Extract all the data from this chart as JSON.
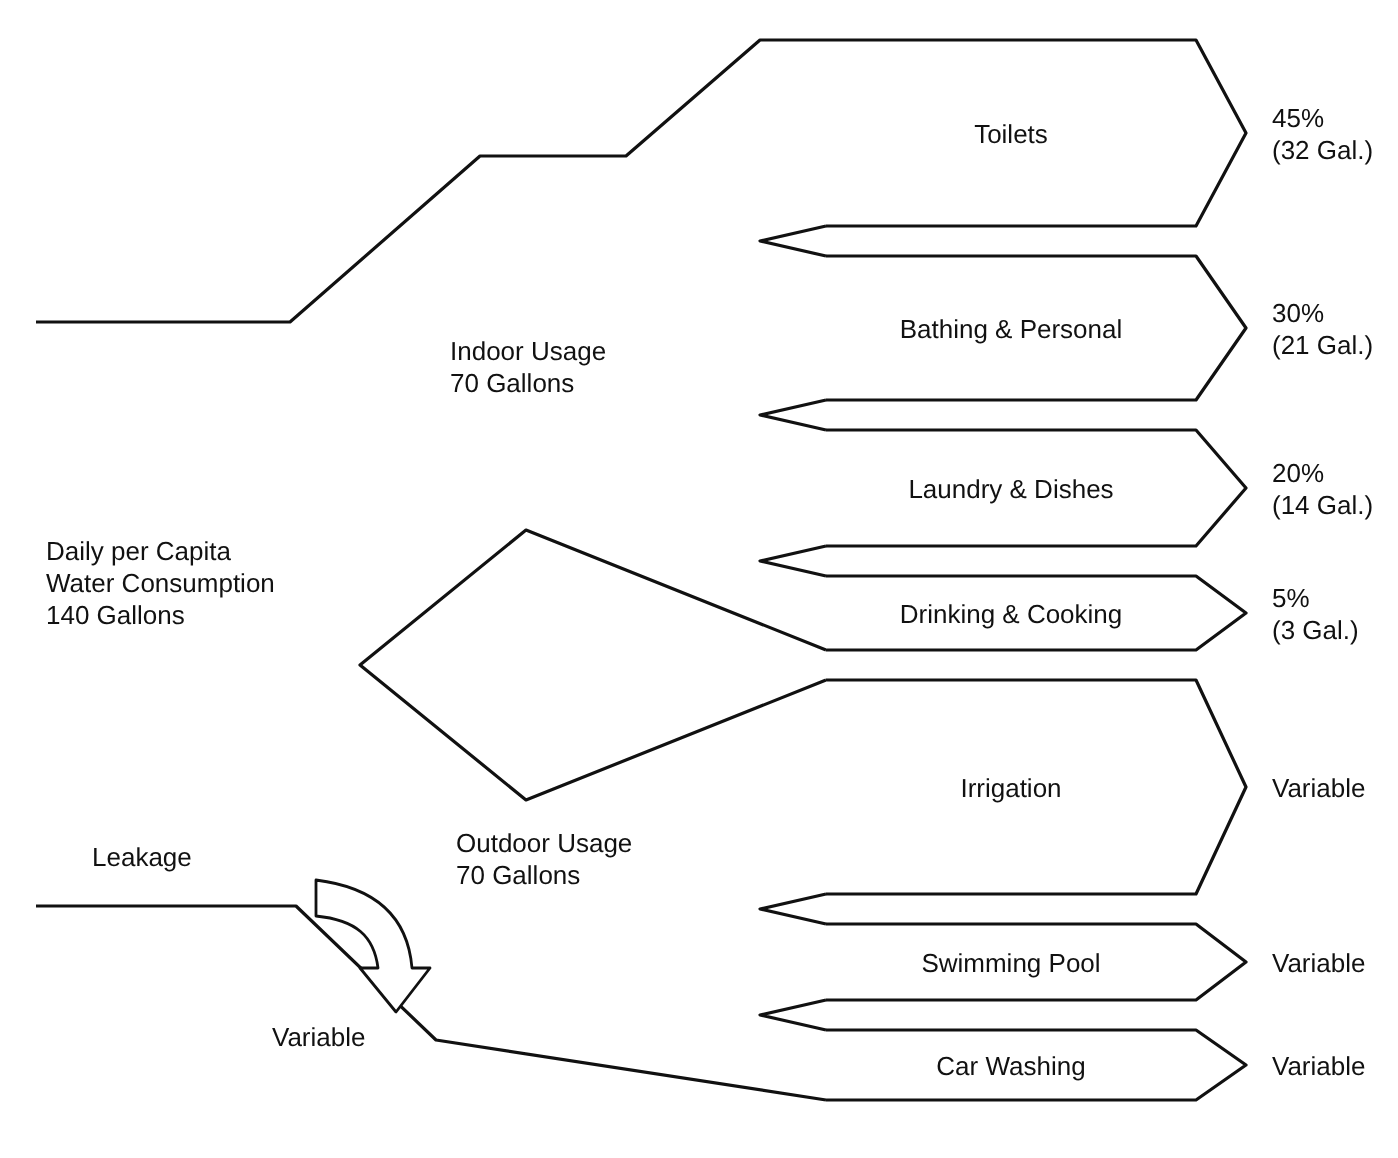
{
  "chart_data": {
    "type": "other",
    "categories": [
      "Toilets",
      "Bathing & Personal",
      "Laundry & Dishes",
      "Drinking & Cooking",
      "Irrigation",
      "Swimming Pool",
      "Car Washing"
    ],
    "values": [
      45,
      30,
      20,
      5,
      null,
      null,
      null
    ],
    "value_labels": [
      "45%\n(32 Gal.)",
      "30%\n(21 Gal.)",
      "20%\n(14 Gal.)",
      "5%\n(3 Gal.)",
      "Variable",
      "Variable",
      "Variable"
    ],
    "annotations": [
      "Daily per Capita\nWater Consumption\n140 Gallons",
      "Indoor Usage\n70 Gallons",
      "Outdoor Usage\n70 Gallons",
      "Leakage",
      "Variable"
    ]
  }
}
